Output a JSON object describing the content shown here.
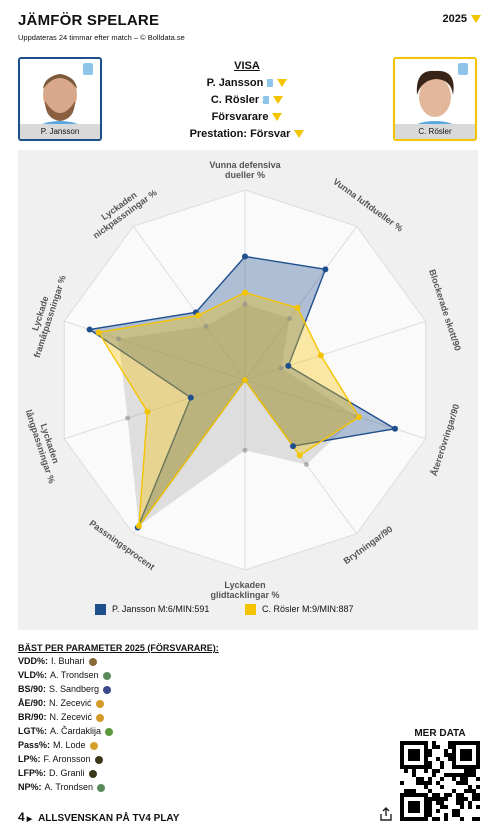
{
  "header": {
    "title": "JÄMFÖR SPELARE",
    "subtitle": "Uppdateras 24 timmar efter match – © Bolldata.se",
    "year": "2025"
  },
  "players": [
    "P. Jansson",
    "C. Rösler"
  ],
  "menu": {
    "title": "VISA",
    "items": [
      "P. Jansson",
      "C. Rösler",
      "Försvarare",
      "Prestation: Försvar"
    ]
  },
  "chart_data": {
    "type": "radar",
    "categories": [
      "Vunna defensiva dueller %",
      "Vunna luftdueller %",
      "Blockerade skott/90",
      "Återerövringar/90",
      "Brytningar/90",
      "Lyckaden glidtacklingar %",
      "Passningsprocent",
      "Lyckaden långpassningar %",
      "Lyckade framåtpassningar %",
      "Lyckaden nickpassningar %"
    ],
    "rlim": [
      0,
      100
    ],
    "series": [
      {
        "color": "#8c8c8c",
        "values": [
          40,
          40,
          20,
          62,
          55,
          37,
          95,
          65,
          70,
          35
        ]
      },
      {
        "name": "P. Jansson M:6/MIN:591",
        "color": "#1f4e8c",
        "values": [
          65,
          72,
          24,
          83,
          43,
          0,
          96,
          30,
          86,
          44
        ]
      },
      {
        "name": "C. Rösler M:9/MIN:887",
        "color": "#f5c400",
        "values": [
          46,
          47,
          42,
          63,
          49,
          0,
          95,
          54,
          81,
          42
        ]
      }
    ]
  },
  "best": {
    "title": "BÄST PER PARAMETER 2025 (FÖRSVARARE):",
    "items": [
      {
        "param": "VDD%:",
        "player": "I. Buhari"
      },
      {
        "param": "VLD%:",
        "player": "A. Trondsen"
      },
      {
        "param": "BS/90:",
        "player": "S. Sandberg"
      },
      {
        "param": "ÅE/90:",
        "player": "N. Zecević"
      },
      {
        "param": "BR/90:",
        "player": "N. Zecević"
      },
      {
        "param": "LGT%:",
        "player": "A. Čardaklija"
      },
      {
        "param": "Pass%:",
        "player": "M. Lode"
      },
      {
        "param": "LP%:",
        "player": "F. Aronsson"
      },
      {
        "param": "LFP%:",
        "player": "D. Granli"
      },
      {
        "param": "NP%:",
        "player": "A. Trondsen"
      }
    ]
  },
  "more_data": "MER DATA",
  "footer": "ALLSVENSKAN PÅ TV4 PLAY"
}
